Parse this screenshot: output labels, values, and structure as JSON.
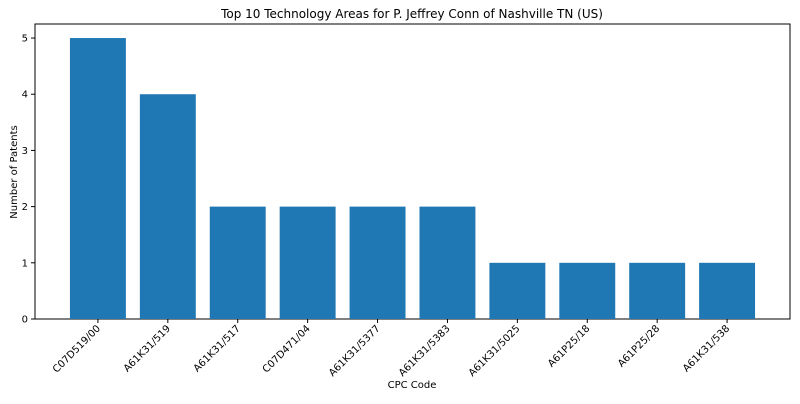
{
  "chart_data": {
    "type": "bar",
    "title": "Top 10 Technology Areas for P. Jeffrey Conn of Nashville TN (US)",
    "x_label": "CPC Code",
    "y_label": "Number of Patents",
    "categories": [
      "C07D519/00",
      "A61K31/519",
      "A61K31/517",
      "C07D471/04",
      "A61K31/5377",
      "A61K31/5383",
      "A61K31/5025",
      "A61P25/18",
      "A61P25/28",
      "A61K31/538"
    ],
    "values": [
      5,
      4,
      2,
      2,
      2,
      2,
      1,
      1,
      1,
      1
    ],
    "color": "#1f77b4",
    "ylim": [
      0,
      5.25
    ],
    "yticks": [
      0,
      1,
      2,
      3,
      4,
      5
    ],
    "grid": false
  }
}
